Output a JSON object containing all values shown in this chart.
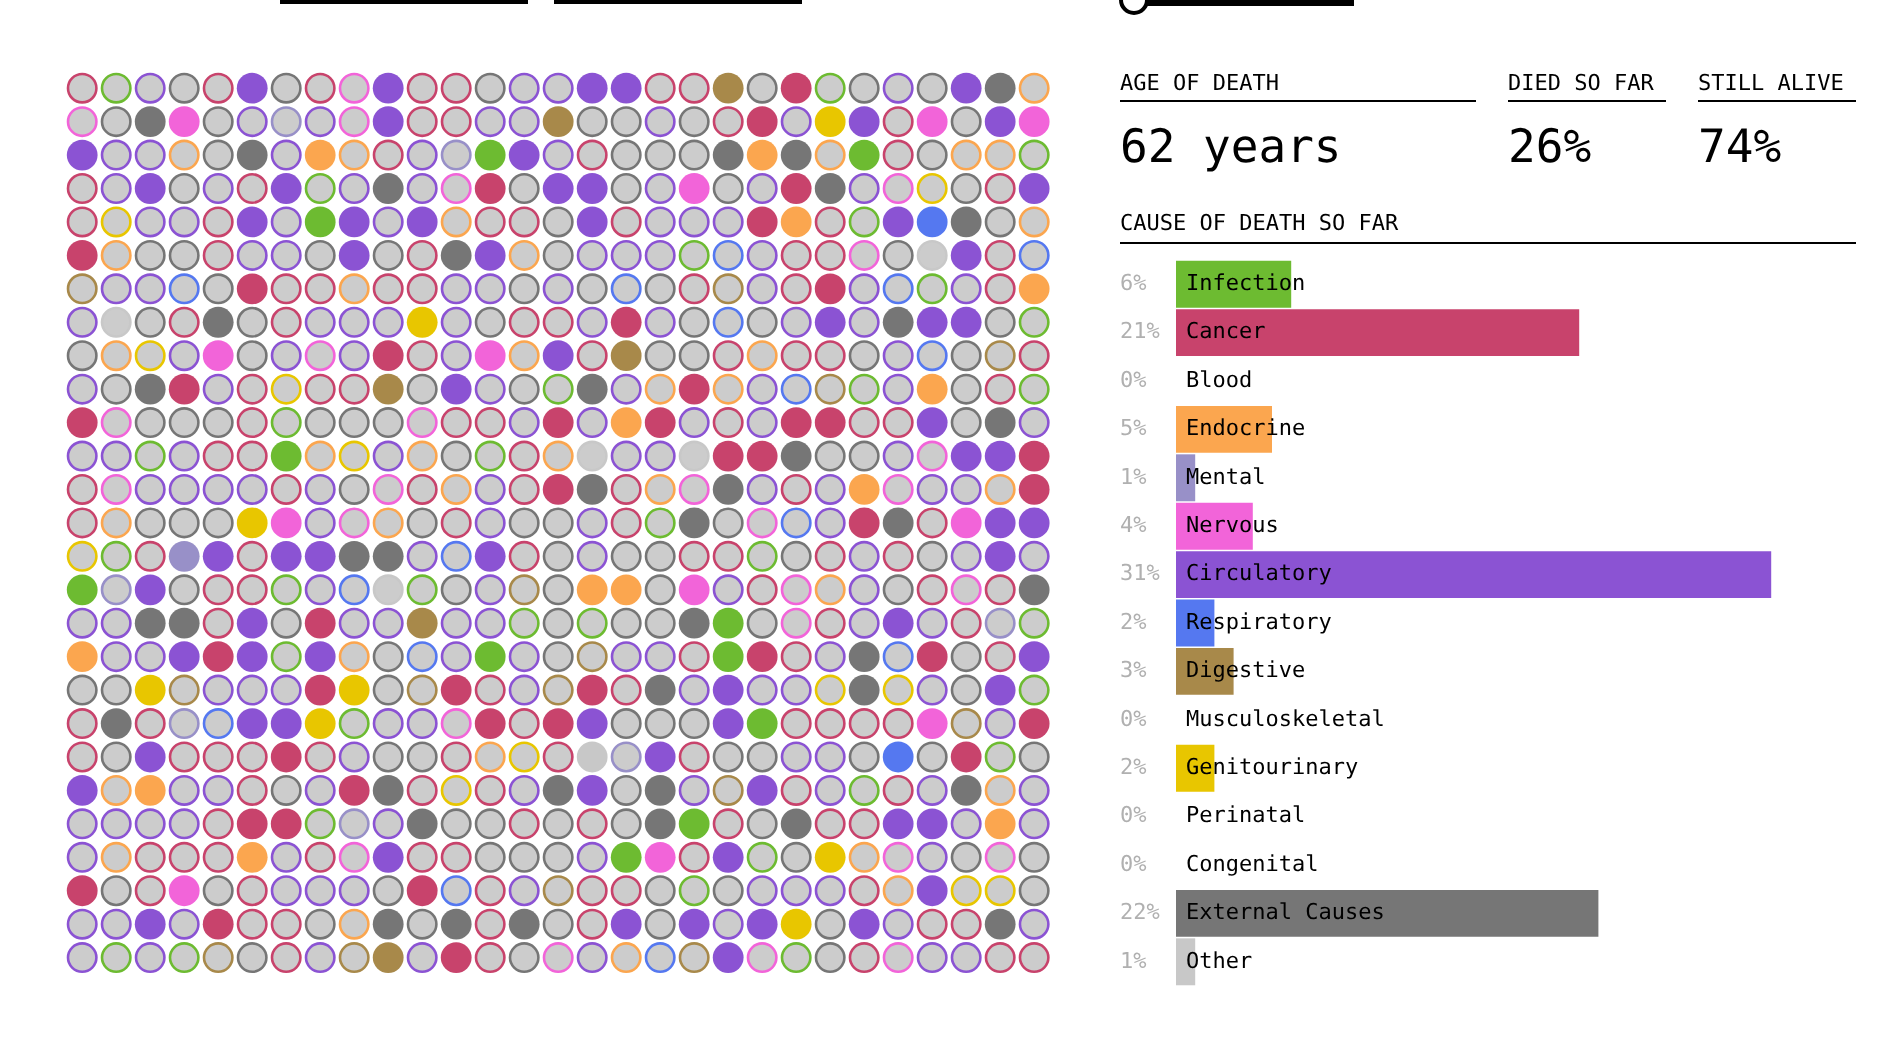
{
  "chart_data": [
    {
      "type": "other",
      "categories": [
        "AGE OF DEATH",
        "DIED SO FAR",
        "STILL ALIVE"
      ],
      "value_labels": [
        "62 years",
        "26%",
        "74%"
      ]
    },
    {
      "type": "bar",
      "orientation": "horizontal",
      "title": "CAUSE OF DEATH SO FAR",
      "categories": [
        "Infection",
        "Cancer",
        "Blood",
        "Endocrine",
        "Mental",
        "Nervous",
        "Circulatory",
        "Respiratory",
        "Digestive",
        "Musculoskeletal",
        "Genitourinary",
        "Perinatal",
        "Congenital",
        "External Causes",
        "Other"
      ],
      "values": [
        6,
        21,
        0,
        5,
        1,
        4,
        31,
        2,
        3,
        0,
        2,
        0,
        0,
        22,
        1
      ],
      "colors": [
        "#6dbb31",
        "#c8436c",
        null,
        "#fba64f",
        "#9890c8",
        "#f264d9",
        "#8b53d3",
        "#5578f0",
        "#a8894a",
        null,
        "#e8c600",
        null,
        null,
        "#767676",
        "#c8c8c8"
      ],
      "value_labels": [
        "6%",
        "21%",
        "0%",
        "5%",
        "1%",
        "4%",
        "31%",
        "2%",
        "3%",
        "0%",
        "2%",
        "0%",
        "0%",
        "22%",
        "1%"
      ],
      "tick_labels": "y"
    }
  ]
}
